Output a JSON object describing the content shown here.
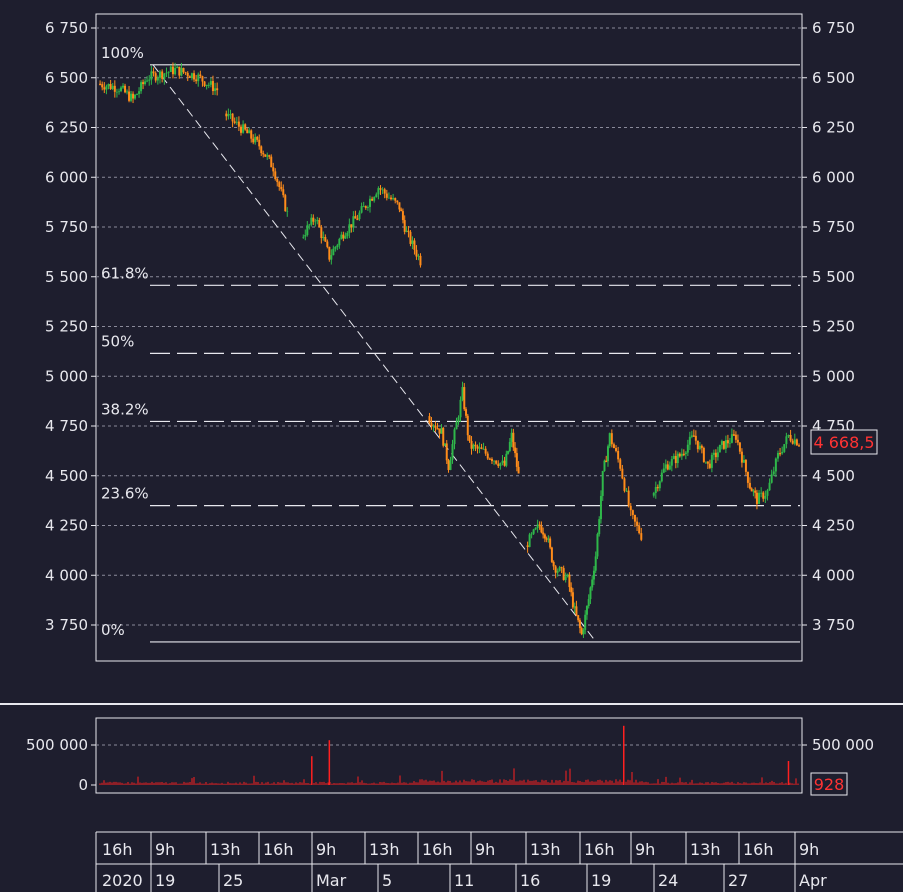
{
  "chart_data": [
    {
      "type": "candlestick",
      "name": "price",
      "ylim": [
        3580,
        6800
      ],
      "y_ticks": [
        6750,
        6500,
        6250,
        6000,
        5750,
        5500,
        5250,
        5000,
        4750,
        4500,
        4250,
        4000,
        3750
      ],
      "y_tick_labels": [
        "6 750",
        "6 500",
        "6 250",
        "6 000",
        "5 750",
        "5 500",
        "5 250",
        "5 000",
        "4 750",
        "4 500",
        "4 250",
        "4 000",
        "3 750"
      ],
      "grid": true,
      "last_value_label": "4 668,5",
      "colors": {
        "up": "#2fb84a",
        "down": "#ff8c1a",
        "last": "#ff3333",
        "grid": "#8a8a9a",
        "fib": "#e8e8ee"
      },
      "fibonacci": {
        "high": 6565,
        "low": 3665,
        "levels": [
          {
            "label": "100%",
            "value": 6565
          },
          {
            "label": "61.8%",
            "value": 5457
          },
          {
            "label": "50%",
            "value": 5115
          },
          {
            "label": "38.2%",
            "value": 4773
          },
          {
            "label": "23.6%",
            "value": 4350
          },
          {
            "label": "0%",
            "value": 3665
          }
        ]
      },
      "series_close": [
        {
          "x": 0.0,
          "y": 6470
        },
        {
          "x": 0.03,
          "y": 6450
        },
        {
          "x": 0.05,
          "y": 6390
        },
        {
          "x": 0.07,
          "y": 6500
        },
        {
          "x": 0.11,
          "y": 6540
        },
        {
          "x": 0.14,
          "y": 6510
        },
        {
          "x": 0.17,
          "y": 6440
        },
        {
          "x": 0.18,
          "y": 6320
        },
        {
          "x": 0.21,
          "y": 6230
        },
        {
          "x": 0.23,
          "y": 6160
        },
        {
          "x": 0.25,
          "y": 6050
        },
        {
          "x": 0.27,
          "y": 5820
        },
        {
          "x": 0.29,
          "y": 5700
        },
        {
          "x": 0.31,
          "y": 5800
        },
        {
          "x": 0.33,
          "y": 5600
        },
        {
          "x": 0.35,
          "y": 5720
        },
        {
          "x": 0.37,
          "y": 5800
        },
        {
          "x": 0.4,
          "y": 5950
        },
        {
          "x": 0.43,
          "y": 5850
        },
        {
          "x": 0.44,
          "y": 5720
        },
        {
          "x": 0.46,
          "y": 5580
        },
        {
          "x": 0.47,
          "y": 4800
        },
        {
          "x": 0.49,
          "y": 4720
        },
        {
          "x": 0.5,
          "y": 4550
        },
        {
          "x": 0.52,
          "y": 4920
        },
        {
          "x": 0.53,
          "y": 4650
        },
        {
          "x": 0.55,
          "y": 4620
        },
        {
          "x": 0.58,
          "y": 4550
        },
        {
          "x": 0.59,
          "y": 4700
        },
        {
          "x": 0.6,
          "y": 4500
        },
        {
          "x": 0.61,
          "y": 4150
        },
        {
          "x": 0.63,
          "y": 4250
        },
        {
          "x": 0.64,
          "y": 4200
        },
        {
          "x": 0.65,
          "y": 4050
        },
        {
          "x": 0.67,
          "y": 3980
        },
        {
          "x": 0.68,
          "y": 3820
        },
        {
          "x": 0.69,
          "y": 3700
        },
        {
          "x": 0.7,
          "y": 3880
        },
        {
          "x": 0.71,
          "y": 4100
        },
        {
          "x": 0.72,
          "y": 4500
        },
        {
          "x": 0.73,
          "y": 4700
        },
        {
          "x": 0.745,
          "y": 4550
        },
        {
          "x": 0.76,
          "y": 4300
        },
        {
          "x": 0.775,
          "y": 4200
        },
        {
          "x": 0.79,
          "y": 4400
        },
        {
          "x": 0.81,
          "y": 4550
        },
        {
          "x": 0.83,
          "y": 4600
        },
        {
          "x": 0.85,
          "y": 4700
        },
        {
          "x": 0.87,
          "y": 4550
        },
        {
          "x": 0.89,
          "y": 4650
        },
        {
          "x": 0.91,
          "y": 4700
        },
        {
          "x": 0.93,
          "y": 4450
        },
        {
          "x": 0.94,
          "y": 4380
        },
        {
          "x": 0.955,
          "y": 4420
        },
        {
          "x": 0.97,
          "y": 4600
        },
        {
          "x": 0.985,
          "y": 4700
        },
        {
          "x": 1.0,
          "y": 4668.5
        }
      ],
      "gaps_after_x": [
        0.17,
        0.27,
        0.46,
        0.6,
        0.775
      ]
    },
    {
      "type": "bar",
      "name": "volume",
      "ylim": [
        0,
        800000
      ],
      "y_ticks": [
        500000,
        0
      ],
      "y_tick_labels": [
        "500 000",
        "0"
      ],
      "grid": true,
      "last_value_label": "928",
      "spikes": [
        {
          "x": 0.305,
          "y": 360000
        },
        {
          "x": 0.33,
          "y": 560000
        },
        {
          "x": 0.75,
          "y": 740000
        },
        {
          "x": 0.985,
          "y": 300000
        }
      ]
    }
  ],
  "time_axis": {
    "row_top": [
      "16h",
      "9h",
      "13h",
      "16h",
      "9h",
      "13h",
      "16h",
      "9h",
      "13h",
      "16h",
      "9h",
      "13h",
      "16h",
      "9h"
    ],
    "row_bottom": [
      "2020",
      "19",
      "25",
      "Mar",
      "5",
      "11",
      "16",
      "19",
      "24",
      "27",
      "Apr"
    ]
  }
}
